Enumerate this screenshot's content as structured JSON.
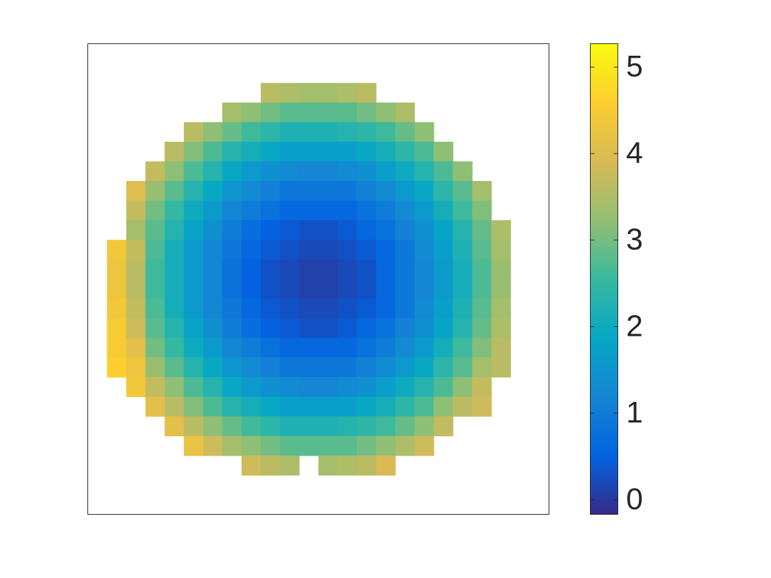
{
  "chart_data": {
    "type": "heatmap",
    "z": [
      [
        null,
        null,
        null,
        null,
        null,
        null,
        null,
        null,
        null,
        null,
        null,
        null,
        null,
        null,
        null,
        null,
        null,
        null,
        null,
        null,
        null,
        null,
        null,
        null
      ],
      [
        null,
        null,
        null,
        null,
        null,
        null,
        null,
        null,
        null,
        null,
        null,
        null,
        null,
        null,
        null,
        null,
        null,
        null,
        null,
        null,
        null,
        null,
        null,
        null
      ],
      [
        null,
        null,
        null,
        null,
        null,
        null,
        null,
        null,
        null,
        3.6,
        3.5,
        3.4,
        3.4,
        3.5,
        3.6,
        null,
        null,
        null,
        null,
        null,
        null,
        null,
        null,
        null
      ],
      [
        null,
        null,
        null,
        null,
        null,
        null,
        null,
        3.4,
        3.2,
        3.0,
        2.8,
        2.8,
        2.8,
        2.8,
        3.0,
        3.2,
        3.5,
        null,
        null,
        null,
        null,
        null,
        null,
        null
      ],
      [
        null,
        null,
        null,
        null,
        null,
        3.6,
        3.2,
        2.9,
        2.6,
        2.4,
        2.2,
        2.2,
        2.2,
        2.3,
        2.4,
        2.6,
        2.9,
        3.2,
        null,
        null,
        null,
        null,
        null,
        null
      ],
      [
        null,
        null,
        null,
        null,
        3.6,
        3.1,
        2.7,
        2.3,
        2.1,
        1.9,
        1.7,
        1.7,
        1.7,
        1.7,
        1.9,
        2.1,
        2.4,
        2.7,
        3.2,
        null,
        null,
        null,
        null,
        null
      ],
      [
        null,
        null,
        null,
        3.7,
        3.2,
        2.7,
        2.3,
        1.9,
        1.6,
        1.4,
        1.3,
        1.2,
        1.2,
        1.3,
        1.4,
        1.7,
        2.0,
        2.3,
        2.7,
        3.2,
        null,
        null,
        null,
        null
      ],
      [
        null,
        null,
        4.0,
        3.3,
        2.8,
        2.3,
        1.9,
        1.5,
        1.3,
        1.1,
        0.9,
        0.9,
        0.9,
        0.9,
        1.1,
        1.3,
        1.6,
        1.9,
        2.4,
        2.8,
        3.4,
        null,
        null,
        null
      ],
      [
        null,
        null,
        3.7,
        3.0,
        2.5,
        2.0,
        1.6,
        1.2,
        1.0,
        0.8,
        0.6,
        0.6,
        0.6,
        0.6,
        0.8,
        1.0,
        1.3,
        1.6,
        2.1,
        2.6,
        3.1,
        null,
        null,
        null
      ],
      [
        null,
        null,
        3.4,
        2.8,
        2.3,
        1.8,
        1.4,
        1.0,
        0.7,
        0.5,
        0.4,
        0.3,
        0.3,
        0.4,
        0.6,
        0.8,
        1.1,
        1.4,
        1.8,
        2.3,
        2.9,
        3.5,
        null,
        null
      ],
      [
        null,
        4.4,
        3.7,
        2.7,
        2.1,
        1.6,
        1.2,
        0.9,
        0.6,
        0.4,
        0.3,
        0.2,
        0.2,
        0.3,
        0.4,
        0.6,
        0.9,
        1.3,
        1.7,
        2.2,
        2.8,
        3.4,
        null,
        null
      ],
      [
        null,
        4.3,
        3.6,
        2.6,
        2.1,
        1.6,
        1.2,
        0.8,
        0.5,
        0.3,
        0.2,
        0.1,
        0.1,
        0.2,
        0.3,
        0.6,
        0.9,
        1.2,
        1.6,
        2.1,
        2.7,
        3.3,
        null,
        null
      ],
      [
        null,
        4.3,
        3.6,
        2.6,
        2.1,
        1.6,
        1.2,
        0.8,
        0.5,
        0.3,
        0.2,
        0.1,
        0.1,
        0.2,
        0.3,
        0.6,
        0.9,
        1.2,
        1.6,
        2.1,
        2.7,
        3.3,
        null,
        null
      ],
      [
        null,
        4.4,
        3.7,
        2.7,
        2.1,
        1.6,
        1.2,
        0.9,
        0.6,
        0.4,
        0.3,
        0.2,
        0.2,
        0.3,
        0.4,
        0.6,
        0.9,
        1.3,
        1.7,
        2.2,
        2.8,
        3.4,
        null,
        null
      ],
      [
        null,
        4.5,
        3.8,
        2.8,
        2.3,
        1.8,
        1.4,
        1.0,
        0.7,
        0.5,
        0.4,
        0.3,
        0.3,
        0.4,
        0.6,
        0.8,
        1.1,
        1.4,
        1.8,
        2.3,
        2.9,
        3.5,
        null,
        null
      ],
      [
        null,
        4.5,
        4.1,
        3.0,
        2.5,
        2.0,
        1.6,
        1.2,
        1.0,
        0.8,
        0.6,
        0.6,
        0.6,
        0.6,
        0.8,
        1.0,
        1.3,
        1.6,
        2.1,
        2.6,
        3.1,
        3.6,
        null,
        null
      ],
      [
        null,
        4.6,
        4.3,
        3.3,
        2.8,
        2.3,
        1.9,
        1.5,
        1.3,
        1.1,
        0.9,
        0.9,
        0.9,
        0.9,
        1.1,
        1.3,
        1.6,
        1.9,
        2.4,
        2.8,
        3.4,
        3.6,
        null,
        null
      ],
      [
        null,
        null,
        4.4,
        3.7,
        3.2,
        2.7,
        2.3,
        1.9,
        1.6,
        1.4,
        1.3,
        1.2,
        1.2,
        1.3,
        1.4,
        1.7,
        2.0,
        2.3,
        2.7,
        3.2,
        3.7,
        null,
        null,
        null
      ],
      [
        null,
        null,
        null,
        4.1,
        3.6,
        3.1,
        2.7,
        2.3,
        2.1,
        1.9,
        1.7,
        1.7,
        1.7,
        1.7,
        1.9,
        2.1,
        2.4,
        2.7,
        3.2,
        3.6,
        3.8,
        null,
        null,
        null
      ],
      [
        null,
        null,
        null,
        null,
        4.1,
        3.6,
        3.2,
        2.9,
        2.6,
        2.4,
        2.2,
        2.2,
        2.2,
        2.3,
        2.4,
        2.6,
        2.9,
        3.2,
        3.7,
        null,
        null,
        null,
        null,
        null
      ],
      [
        null,
        null,
        null,
        null,
        null,
        4.2,
        3.8,
        3.4,
        3.2,
        3.0,
        2.8,
        2.8,
        2.8,
        2.8,
        3.0,
        3.2,
        3.5,
        3.8,
        null,
        null,
        null,
        null,
        null,
        null
      ],
      [
        null,
        null,
        null,
        null,
        null,
        null,
        null,
        null,
        3.8,
        3.6,
        3.5,
        null,
        3.4,
        3.5,
        3.6,
        3.9,
        null,
        null,
        null,
        null,
        null,
        null,
        null,
        null
      ],
      [
        null,
        null,
        null,
        null,
        null,
        null,
        null,
        null,
        null,
        null,
        null,
        null,
        null,
        null,
        null,
        null,
        null,
        null,
        null,
        null,
        null,
        null,
        null,
        null
      ],
      [
        null,
        null,
        null,
        null,
        null,
        null,
        null,
        null,
        null,
        null,
        null,
        null,
        null,
        null,
        null,
        null,
        null,
        null,
        null,
        null,
        null,
        null,
        null,
        null
      ]
    ],
    "clim": [
      -0.17,
      5.27
    ],
    "colorbar_ticks": [
      0,
      1,
      2,
      3,
      4,
      5
    ],
    "colormap": [
      "#352a87",
      "#0363e1",
      "#1485d4",
      "#06a7c6",
      "#38b99e",
      "#92bf73",
      "#d9ba56",
      "#fcce2e",
      "#f9fb0e"
    ]
  }
}
